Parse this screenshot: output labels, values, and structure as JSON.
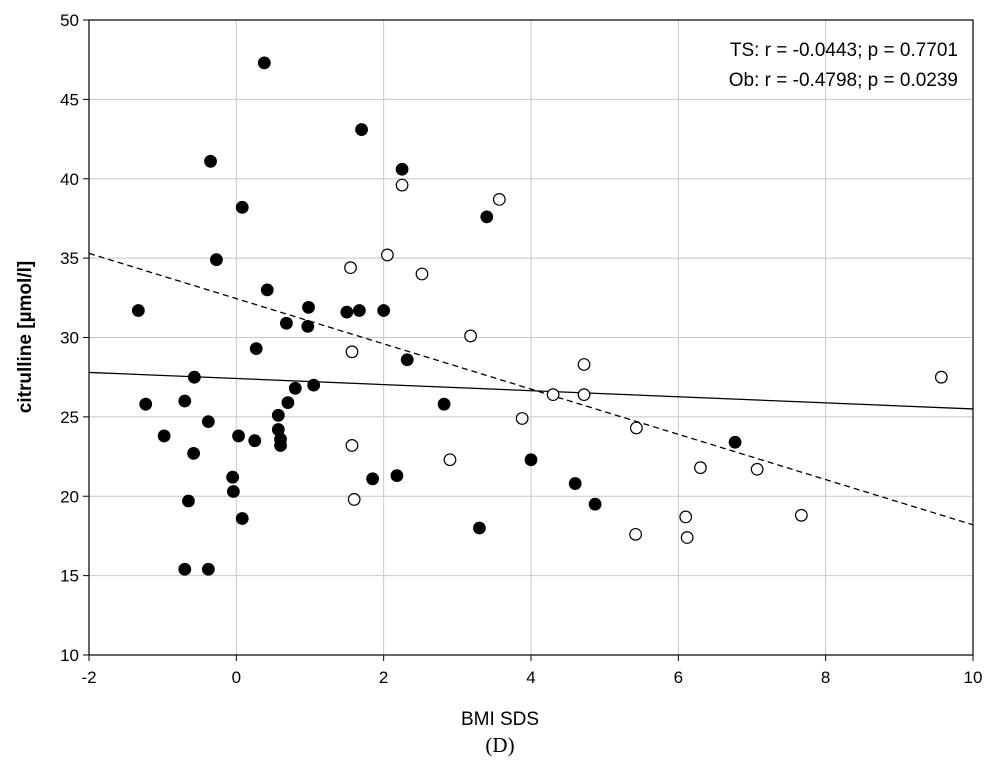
{
  "chart_data": {
    "type": "scatter",
    "xlabel": "BMI SDS",
    "ylabel": "citrulline [µmol/l]",
    "panel_label": "(D)",
    "xlim": [
      -2,
      10
    ],
    "ylim": [
      10,
      50
    ],
    "x_ticks": [
      -2,
      0,
      2,
      4,
      6,
      8,
      10
    ],
    "y_ticks": [
      10,
      15,
      20,
      25,
      30,
      35,
      40,
      45,
      50
    ],
    "grid": true,
    "annotations": [
      "TS: r = -0.0443; p = 0.7701",
      "Ob: r = -0.4798; p = 0.0239"
    ],
    "series": [
      {
        "marker": "filled-circle",
        "points": [
          [
            0.38,
            47.3
          ],
          [
            1.7,
            43.1
          ],
          [
            -0.35,
            41.1
          ],
          [
            2.25,
            40.6
          ],
          [
            0.08,
            38.2
          ],
          [
            3.4,
            37.6
          ],
          [
            -0.27,
            34.9
          ],
          [
            0.42,
            33.0
          ],
          [
            -1.33,
            31.7
          ],
          [
            0.98,
            31.9
          ],
          [
            1.5,
            31.6
          ],
          [
            1.67,
            31.7
          ],
          [
            2.0,
            31.7
          ],
          [
            0.68,
            30.9
          ],
          [
            0.97,
            30.7
          ],
          [
            0.27,
            29.3
          ],
          [
            2.32,
            28.6
          ],
          [
            -0.57,
            27.5
          ],
          [
            0.8,
            26.8
          ],
          [
            1.05,
            27.0
          ],
          [
            -1.23,
            25.8
          ],
          [
            -0.7,
            26.0
          ],
          [
            0.7,
            25.9
          ],
          [
            2.82,
            25.8
          ],
          [
            0.57,
            25.1
          ],
          [
            -0.38,
            24.7
          ],
          [
            0.57,
            24.2
          ],
          [
            -0.98,
            23.8
          ],
          [
            0.03,
            23.8
          ],
          [
            0.25,
            23.5
          ],
          [
            0.6,
            23.6
          ],
          [
            0.6,
            23.2
          ],
          [
            6.77,
            23.4
          ],
          [
            -0.58,
            22.7
          ],
          [
            4.0,
            22.3
          ],
          [
            -0.05,
            21.2
          ],
          [
            1.85,
            21.1
          ],
          [
            2.18,
            21.3
          ],
          [
            4.6,
            20.8
          ],
          [
            -0.04,
            20.3
          ],
          [
            -0.65,
            19.7
          ],
          [
            4.87,
            19.5
          ],
          [
            0.08,
            18.6
          ],
          [
            3.3,
            18.0
          ],
          [
            -0.7,
            15.4
          ],
          [
            -0.38,
            15.4
          ]
        ]
      },
      {
        "marker": "open-circle",
        "points": [
          [
            2.25,
            39.6
          ],
          [
            3.57,
            38.7
          ],
          [
            2.05,
            35.2
          ],
          [
            1.55,
            34.4
          ],
          [
            2.52,
            34.0
          ],
          [
            3.18,
            30.1
          ],
          [
            1.57,
            29.1
          ],
          [
            4.72,
            28.3
          ],
          [
            9.57,
            27.5
          ],
          [
            4.3,
            26.4
          ],
          [
            4.72,
            26.4
          ],
          [
            3.88,
            24.9
          ],
          [
            5.43,
            24.3
          ],
          [
            1.57,
            23.2
          ],
          [
            2.9,
            22.3
          ],
          [
            6.3,
            21.8
          ],
          [
            7.07,
            21.7
          ],
          [
            1.6,
            19.8
          ],
          [
            6.1,
            18.7
          ],
          [
            7.67,
            18.8
          ],
          [
            5.42,
            17.6
          ],
          [
            6.12,
            17.4
          ]
        ]
      }
    ],
    "fit_lines": [
      {
        "style": "solid",
        "from": [
          -2,
          27.8
        ],
        "to": [
          10,
          25.5
        ]
      },
      {
        "style": "dashed",
        "from": [
          -2,
          35.3
        ],
        "to": [
          10,
          18.2
        ]
      }
    ]
  }
}
